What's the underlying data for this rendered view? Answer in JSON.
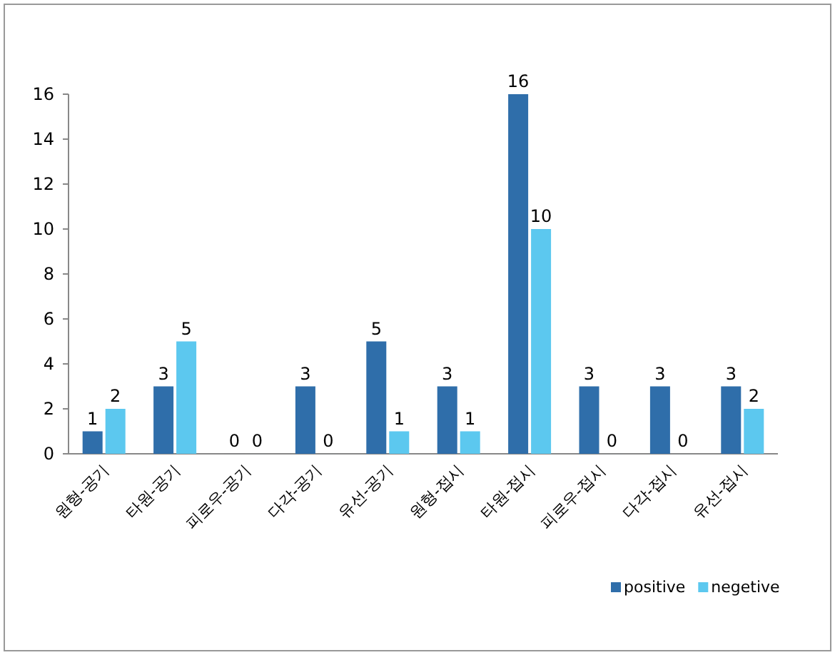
{
  "chart_data": {
    "type": "bar",
    "categories": [
      "원형-공기",
      "타원-공기",
      "피로우-공기",
      "다각-공기",
      "유선-공기",
      "원형-접시",
      "타원-접시",
      "피로우-접시",
      "다각-접시",
      "유선-접시"
    ],
    "series": [
      {
        "name": "positive",
        "color": "#2f6eaa",
        "values": [
          1,
          3,
          0,
          3,
          5,
          3,
          16,
          3,
          3,
          3
        ]
      },
      {
        "name": "negetive",
        "color": "#5cc8ef",
        "values": [
          2,
          5,
          0,
          0,
          1,
          1,
          10,
          0,
          0,
          2
        ]
      }
    ],
    "ylim": [
      0,
      16
    ],
    "yticks": [
      0,
      2,
      4,
      6,
      8,
      10,
      12,
      14,
      16
    ],
    "data_labels": true,
    "grid": false,
    "legend": "bottom right"
  }
}
